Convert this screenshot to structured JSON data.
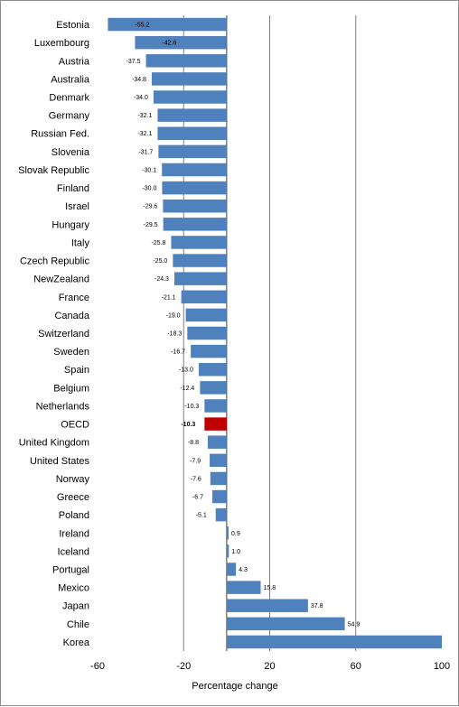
{
  "chart_data": {
    "type": "bar",
    "orientation": "horizontal",
    "categories": [
      "Estonia",
      "Luxembourg",
      "Austria",
      "Australia",
      "Denmark",
      "Germany",
      "Russian Fed.",
      "Slovenia",
      "Slovak Republic",
      "Finland",
      "Israel",
      "Hungary",
      "Italy",
      "Czech Republic",
      "NewZealand",
      "France",
      "Canada",
      "Switzerland",
      "Sweden",
      "Spain",
      "Belgium",
      "Netherlands",
      "OECD",
      "United Kingdom",
      "United States",
      "Norway",
      "Greece",
      "Poland",
      "Ireland",
      "Iceland",
      "Portugal",
      "Mexico",
      "Japan",
      "Chile",
      "Korea"
    ],
    "values": [
      -55.2,
      -42.6,
      -37.5,
      -34.8,
      -34.0,
      -32.1,
      -32.1,
      -31.7,
      -30.1,
      -30.0,
      -29.6,
      -29.5,
      -25.8,
      -25.0,
      -24.3,
      -21.1,
      -19.0,
      -18.3,
      -16.7,
      -13.0,
      -12.4,
      -10.3,
      -10.3,
      -8.8,
      -7.9,
      -7.6,
      -6.7,
      -5.1,
      0.9,
      1.0,
      4.3,
      15.8,
      37.8,
      54.9,
      100
    ],
    "value_labels": [
      "-55.2",
      "-42.6",
      "-37.5",
      "-34.8",
      "-34.0",
      "-32.1",
      "-32.1",
      "-31.7",
      "-30.1",
      "-30.0",
      "-29.6",
      "-29.5",
      "-25.8",
      "-25.0",
      "-24.3",
      "-21.1",
      "-19.0",
      "-18.3",
      "-16.7",
      "-13.0",
      "-12.4",
      "-10.3",
      "-10.3",
      "-8.8",
      "-7.9",
      "-7.6",
      "-6.7",
      "-5.1",
      "0.9",
      "1.0",
      "4.3",
      "15.8",
      "37.8",
      "54.9",
      ""
    ],
    "highlight_category": "OECD",
    "colors": {
      "bar": "#4f81bd",
      "highlight": "#c00000",
      "grid": "#808080"
    },
    "xlabel": "Percentage change",
    "xlim": [
      -60,
      100
    ],
    "xticks": [
      -60,
      -20,
      20,
      60,
      100
    ],
    "grid": true
  }
}
